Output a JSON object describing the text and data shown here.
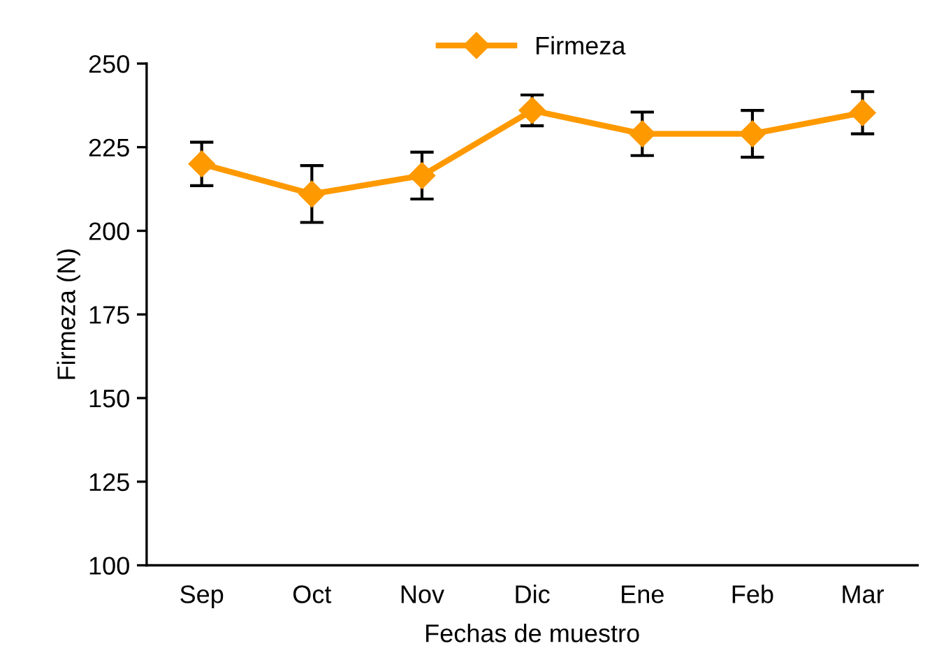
{
  "chart_data": {
    "type": "line",
    "xlabel": "Fechas de muestro",
    "ylabel": "Firmeza (N)",
    "categories": [
      "Sep",
      "Oct",
      "Nov",
      "Dic",
      "Ene",
      "Feb",
      "Mar"
    ],
    "series": [
      {
        "name": "Firmeza",
        "color": "#ff9900",
        "values": [
          220,
          211,
          216.5,
          236,
          229,
          229,
          235.3
        ],
        "errors": [
          6.5,
          8.5,
          7,
          4.6,
          6.5,
          7,
          6.3
        ]
      }
    ],
    "ylim": [
      100,
      250
    ],
    "yticks": [
      100,
      125,
      150,
      175,
      200,
      225,
      250
    ],
    "marker": "diamond",
    "line_style": "solid",
    "legend": "top",
    "grid": false
  }
}
